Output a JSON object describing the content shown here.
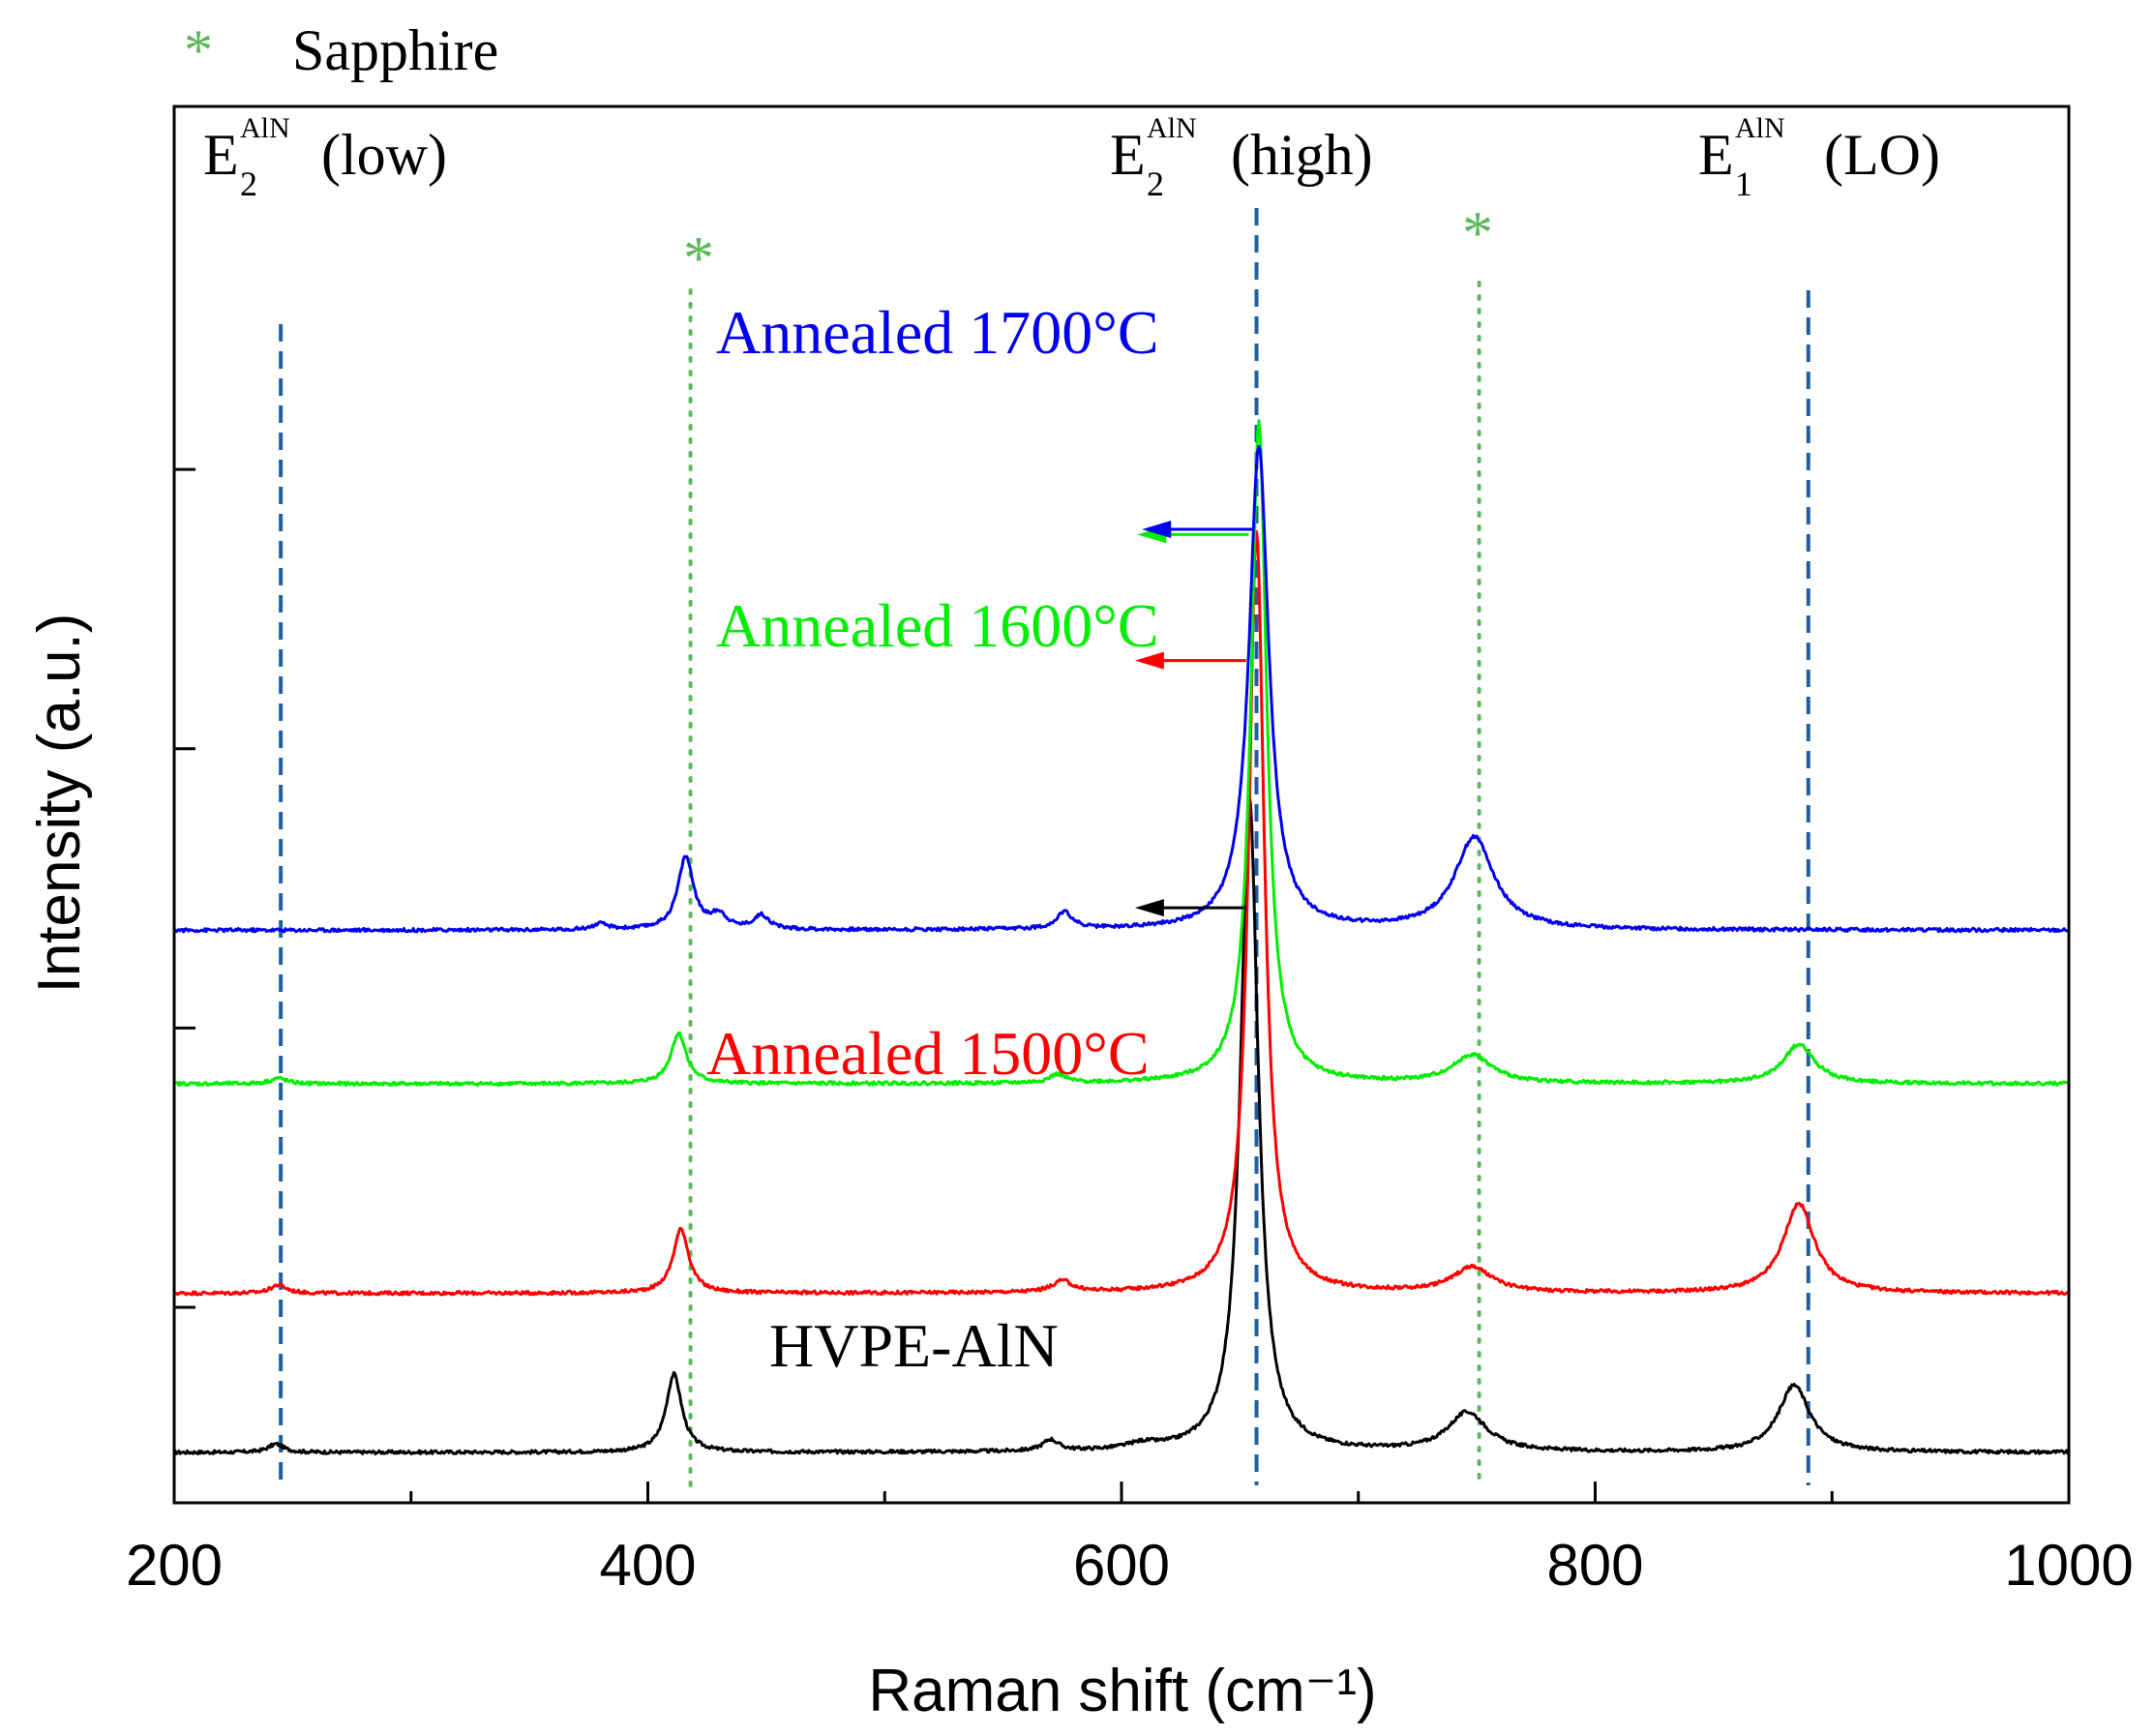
{
  "chart_data": {
    "type": "line",
    "xlabel": "Raman shift (cm⁻¹)",
    "ylabel": "Intensity (a.u.)",
    "xlim": [
      200,
      1000
    ],
    "ylim": [
      0,
      5
    ],
    "x_ticks": [
      "200",
      "400",
      "600",
      "800",
      "1000"
    ],
    "legend": {
      "marker": "*",
      "label": "Sapphire",
      "color": "#5cb85c"
    },
    "reference_lines": [
      {
        "name": "E2 low",
        "x": 245,
        "style": "dashed",
        "color": "#1f5fa0",
        "label_main": "E",
        "label_sub": "2",
        "label_sup": "AlN",
        "label_mode": "(low)"
      },
      {
        "name": "E2 high",
        "x": 657,
        "style": "dashed",
        "color": "#1f5fa0",
        "label_main": "E",
        "label_sub": "2",
        "label_sup": "AlN",
        "label_mode": "(high)"
      },
      {
        "name": "E1 LO",
        "x": 890,
        "style": "dashed",
        "color": "#1f5fa0",
        "label_main": "E",
        "label_sub": "1",
        "label_sup": "AlN",
        "label_mode": "(LO)"
      },
      {
        "name": "Sapphire 418",
        "x": 418,
        "style": "dotted",
        "color": "#5cb85c",
        "marker": "*"
      },
      {
        "name": "Sapphire 751",
        "x": 751,
        "style": "dotted",
        "color": "#5cb85c",
        "marker": "*"
      }
    ],
    "series": [
      {
        "name": "HVPE-AlN",
        "color": "#000000",
        "baseline": 0.18,
        "peaks": [
          {
            "x": 243,
            "height": 0.03,
            "width": 4
          },
          {
            "x": 411,
            "height": 0.28,
            "width": 4
          },
          {
            "x": 570,
            "height": 0.04,
            "width": 4
          },
          {
            "x": 609,
            "height": 0.02,
            "width": 8
          },
          {
            "x": 654,
            "height": 2.35,
            "width": 4.5
          },
          {
            "x": 746,
            "height": 0.14,
            "width": 10
          },
          {
            "x": 884,
            "height": 0.24,
            "width": 8
          }
        ],
        "arrow_at": 660
      },
      {
        "name": "Annealed 1500°C",
        "color": "#ff0000",
        "baseline": 0.75,
        "peaks": [
          {
            "x": 244,
            "height": 0.03,
            "width": 4
          },
          {
            "x": 414,
            "height": 0.23,
            "width": 4
          },
          {
            "x": 575,
            "height": 0.04,
            "width": 5
          },
          {
            "x": 657,
            "height": 2.73,
            "width": 4
          },
          {
            "x": 748,
            "height": 0.09,
            "width": 10
          },
          {
            "x": 886,
            "height": 0.32,
            "width": 8
          }
        ],
        "arrow_at": 660
      },
      {
        "name": "Annealed 1600°C",
        "color": "#00ee00",
        "baseline": 1.5,
        "peaks": [
          {
            "x": 244,
            "height": 0.02,
            "width": 4
          },
          {
            "x": 413,
            "height": 0.18,
            "width": 4
          },
          {
            "x": 573,
            "height": 0.03,
            "width": 4
          },
          {
            "x": 658,
            "height": 2.37,
            "width": 4
          },
          {
            "x": 748,
            "height": 0.1,
            "width": 10
          },
          {
            "x": 886,
            "height": 0.14,
            "width": 8
          }
        ],
        "arrow_at": 661
      },
      {
        "name": "Annealed 1700°C",
        "color": "#0000ee",
        "baseline": 2.05,
        "peaks": [
          {
            "x": 380,
            "height": 0.02,
            "width": 4
          },
          {
            "x": 416,
            "height": 0.26,
            "width": 4
          },
          {
            "x": 430,
            "height": 0.05,
            "width": 4
          },
          {
            "x": 448,
            "height": 0.05,
            "width": 4
          },
          {
            "x": 576,
            "height": 0.06,
            "width": 4
          },
          {
            "x": 658,
            "height": 1.73,
            "width": 5
          },
          {
            "x": 749,
            "height": 0.33,
            "width": 10
          }
        ],
        "arrow_at": 663
      }
    ]
  }
}
